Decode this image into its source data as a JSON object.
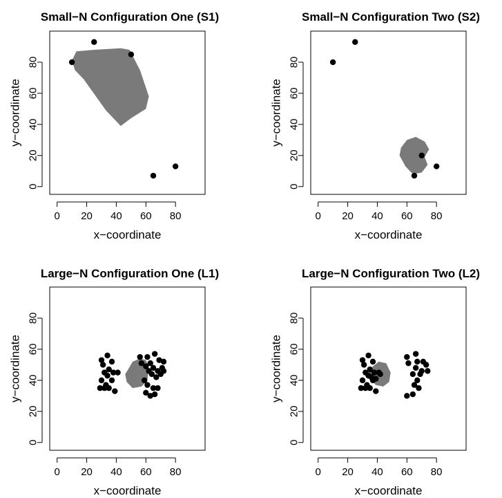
{
  "chart_data": [
    {
      "type": "scatter",
      "title": "Small−N Configuration One (S1)",
      "xlabel": "x−coordinate",
      "ylabel": "y−coordinate",
      "xlim": [
        -5,
        100
      ],
      "ylim": [
        -5,
        100
      ],
      "xticks": [
        0,
        20,
        40,
        60,
        80
      ],
      "yticks": [
        0,
        20,
        40,
        60,
        80
      ],
      "points": [
        [
          10,
          80
        ],
        [
          25,
          93
        ],
        [
          50,
          85
        ],
        [
          65,
          7
        ],
        [
          80,
          13
        ]
      ],
      "region": {
        "color": "#7a7a7a",
        "polygon": [
          [
            10,
            81
          ],
          [
            13,
            87
          ],
          [
            25,
            88
          ],
          [
            43,
            89
          ],
          [
            49,
            88
          ],
          [
            56,
            75
          ],
          [
            62,
            58
          ],
          [
            60,
            50
          ],
          [
            50,
            44
          ],
          [
            43,
            39
          ],
          [
            33,
            49
          ],
          [
            18,
            69
          ],
          [
            12,
            75
          ]
        ]
      }
    },
    {
      "type": "scatter",
      "title": "Small−N Configuration Two (S2)",
      "xlabel": "x−coordinate",
      "ylabel": "y−coordinate",
      "xlim": [
        -5,
        100
      ],
      "ylim": [
        -5,
        100
      ],
      "xticks": [
        0,
        20,
        40,
        60,
        80
      ],
      "yticks": [
        0,
        20,
        40,
        60,
        80
      ],
      "points": [
        [
          10,
          80
        ],
        [
          25,
          93
        ],
        [
          70,
          20
        ],
        [
          65,
          7
        ],
        [
          80,
          13
        ]
      ],
      "region": {
        "color": "#7a7a7a",
        "polygon": [
          [
            56,
            25
          ],
          [
            60,
            30
          ],
          [
            66,
            32
          ],
          [
            72,
            29
          ],
          [
            75,
            24
          ],
          [
            72,
            19
          ],
          [
            74,
            14
          ],
          [
            70,
            9
          ],
          [
            64,
            8
          ],
          [
            59,
            13
          ],
          [
            55,
            20
          ]
        ]
      }
    },
    {
      "type": "scatter",
      "title": "Large−N Configuration One (L1)",
      "xlabel": "x−coordinate",
      "ylabel": "y−coordinate",
      "xlim": [
        -5,
        100
      ],
      "ylim": [
        -5,
        100
      ],
      "xticks": [
        0,
        20,
        40,
        60,
        80
      ],
      "yticks": [
        0,
        20,
        40,
        60,
        80
      ],
      "points": [
        [
          30,
          53
        ],
        [
          34,
          56
        ],
        [
          37,
          52
        ],
        [
          31,
          50
        ],
        [
          35,
          47
        ],
        [
          32,
          45
        ],
        [
          38,
          45
        ],
        [
          41,
          45
        ],
        [
          34,
          43
        ],
        [
          30,
          40
        ],
        [
          37,
          40
        ],
        [
          33,
          37
        ],
        [
          29,
          35
        ],
        [
          32,
          35
        ],
        [
          35,
          35
        ],
        [
          39,
          33
        ],
        [
          56,
          55
        ],
        [
          61,
          55
        ],
        [
          66,
          57
        ],
        [
          57,
          51
        ],
        [
          63,
          51
        ],
        [
          69,
          53
        ],
        [
          72,
          52
        ],
        [
          60,
          49
        ],
        [
          65,
          48
        ],
        [
          62,
          46
        ],
        [
          68,
          46
        ],
        [
          72,
          46
        ],
        [
          64,
          44
        ],
        [
          70,
          44
        ],
        [
          59,
          40
        ],
        [
          67,
          42
        ],
        [
          61,
          37
        ],
        [
          65,
          35
        ],
        [
          68,
          35
        ],
        [
          60,
          32
        ],
        [
          63,
          30
        ],
        [
          66,
          31
        ],
        [
          71,
          48
        ]
      ],
      "region": {
        "color": "#7a7a7a",
        "polygon": [
          [
            48,
            47
          ],
          [
            51,
            52
          ],
          [
            56,
            54
          ],
          [
            60,
            53
          ],
          [
            62,
            48
          ],
          [
            61,
            40
          ],
          [
            57,
            36
          ],
          [
            51,
            35
          ],
          [
            47,
            39
          ],
          [
            46,
            44
          ]
        ]
      }
    },
    {
      "type": "scatter",
      "title": "Large−N Configuration Two (L2)",
      "xlabel": "x−coordinate",
      "ylabel": "y−coordinate",
      "xlim": [
        -5,
        100
      ],
      "ylim": [
        -5,
        100
      ],
      "xticks": [
        0,
        20,
        40,
        60,
        80
      ],
      "yticks": [
        0,
        20,
        40,
        60,
        80
      ],
      "points": [
        [
          30,
          53
        ],
        [
          34,
          56
        ],
        [
          37,
          52
        ],
        [
          31,
          50
        ],
        [
          35,
          47
        ],
        [
          32,
          45
        ],
        [
          38,
          45
        ],
        [
          41,
          45
        ],
        [
          34,
          43
        ],
        [
          30,
          40
        ],
        [
          37,
          40
        ],
        [
          33,
          37
        ],
        [
          29,
          35
        ],
        [
          32,
          35
        ],
        [
          35,
          35
        ],
        [
          39,
          33
        ],
        [
          36,
          42
        ],
        [
          39,
          41
        ],
        [
          42,
          44
        ],
        [
          60,
          55
        ],
        [
          66,
          57
        ],
        [
          61,
          51
        ],
        [
          67,
          52
        ],
        [
          71,
          52
        ],
        [
          73,
          50
        ],
        [
          66,
          48
        ],
        [
          70,
          46
        ],
        [
          74,
          46
        ],
        [
          64,
          44
        ],
        [
          69,
          44
        ],
        [
          67,
          40
        ],
        [
          65,
          37
        ],
        [
          68,
          35
        ],
        [
          60,
          30
        ],
        [
          64,
          31
        ]
      ],
      "region": {
        "color": "#7a7a7a",
        "polygon": [
          [
            37,
            49
          ],
          [
            41,
            52
          ],
          [
            46,
            51
          ],
          [
            49,
            45
          ],
          [
            48,
            39
          ],
          [
            44,
            36
          ],
          [
            39,
            37
          ],
          [
            35,
            41
          ],
          [
            34,
            45
          ]
        ]
      }
    }
  ]
}
